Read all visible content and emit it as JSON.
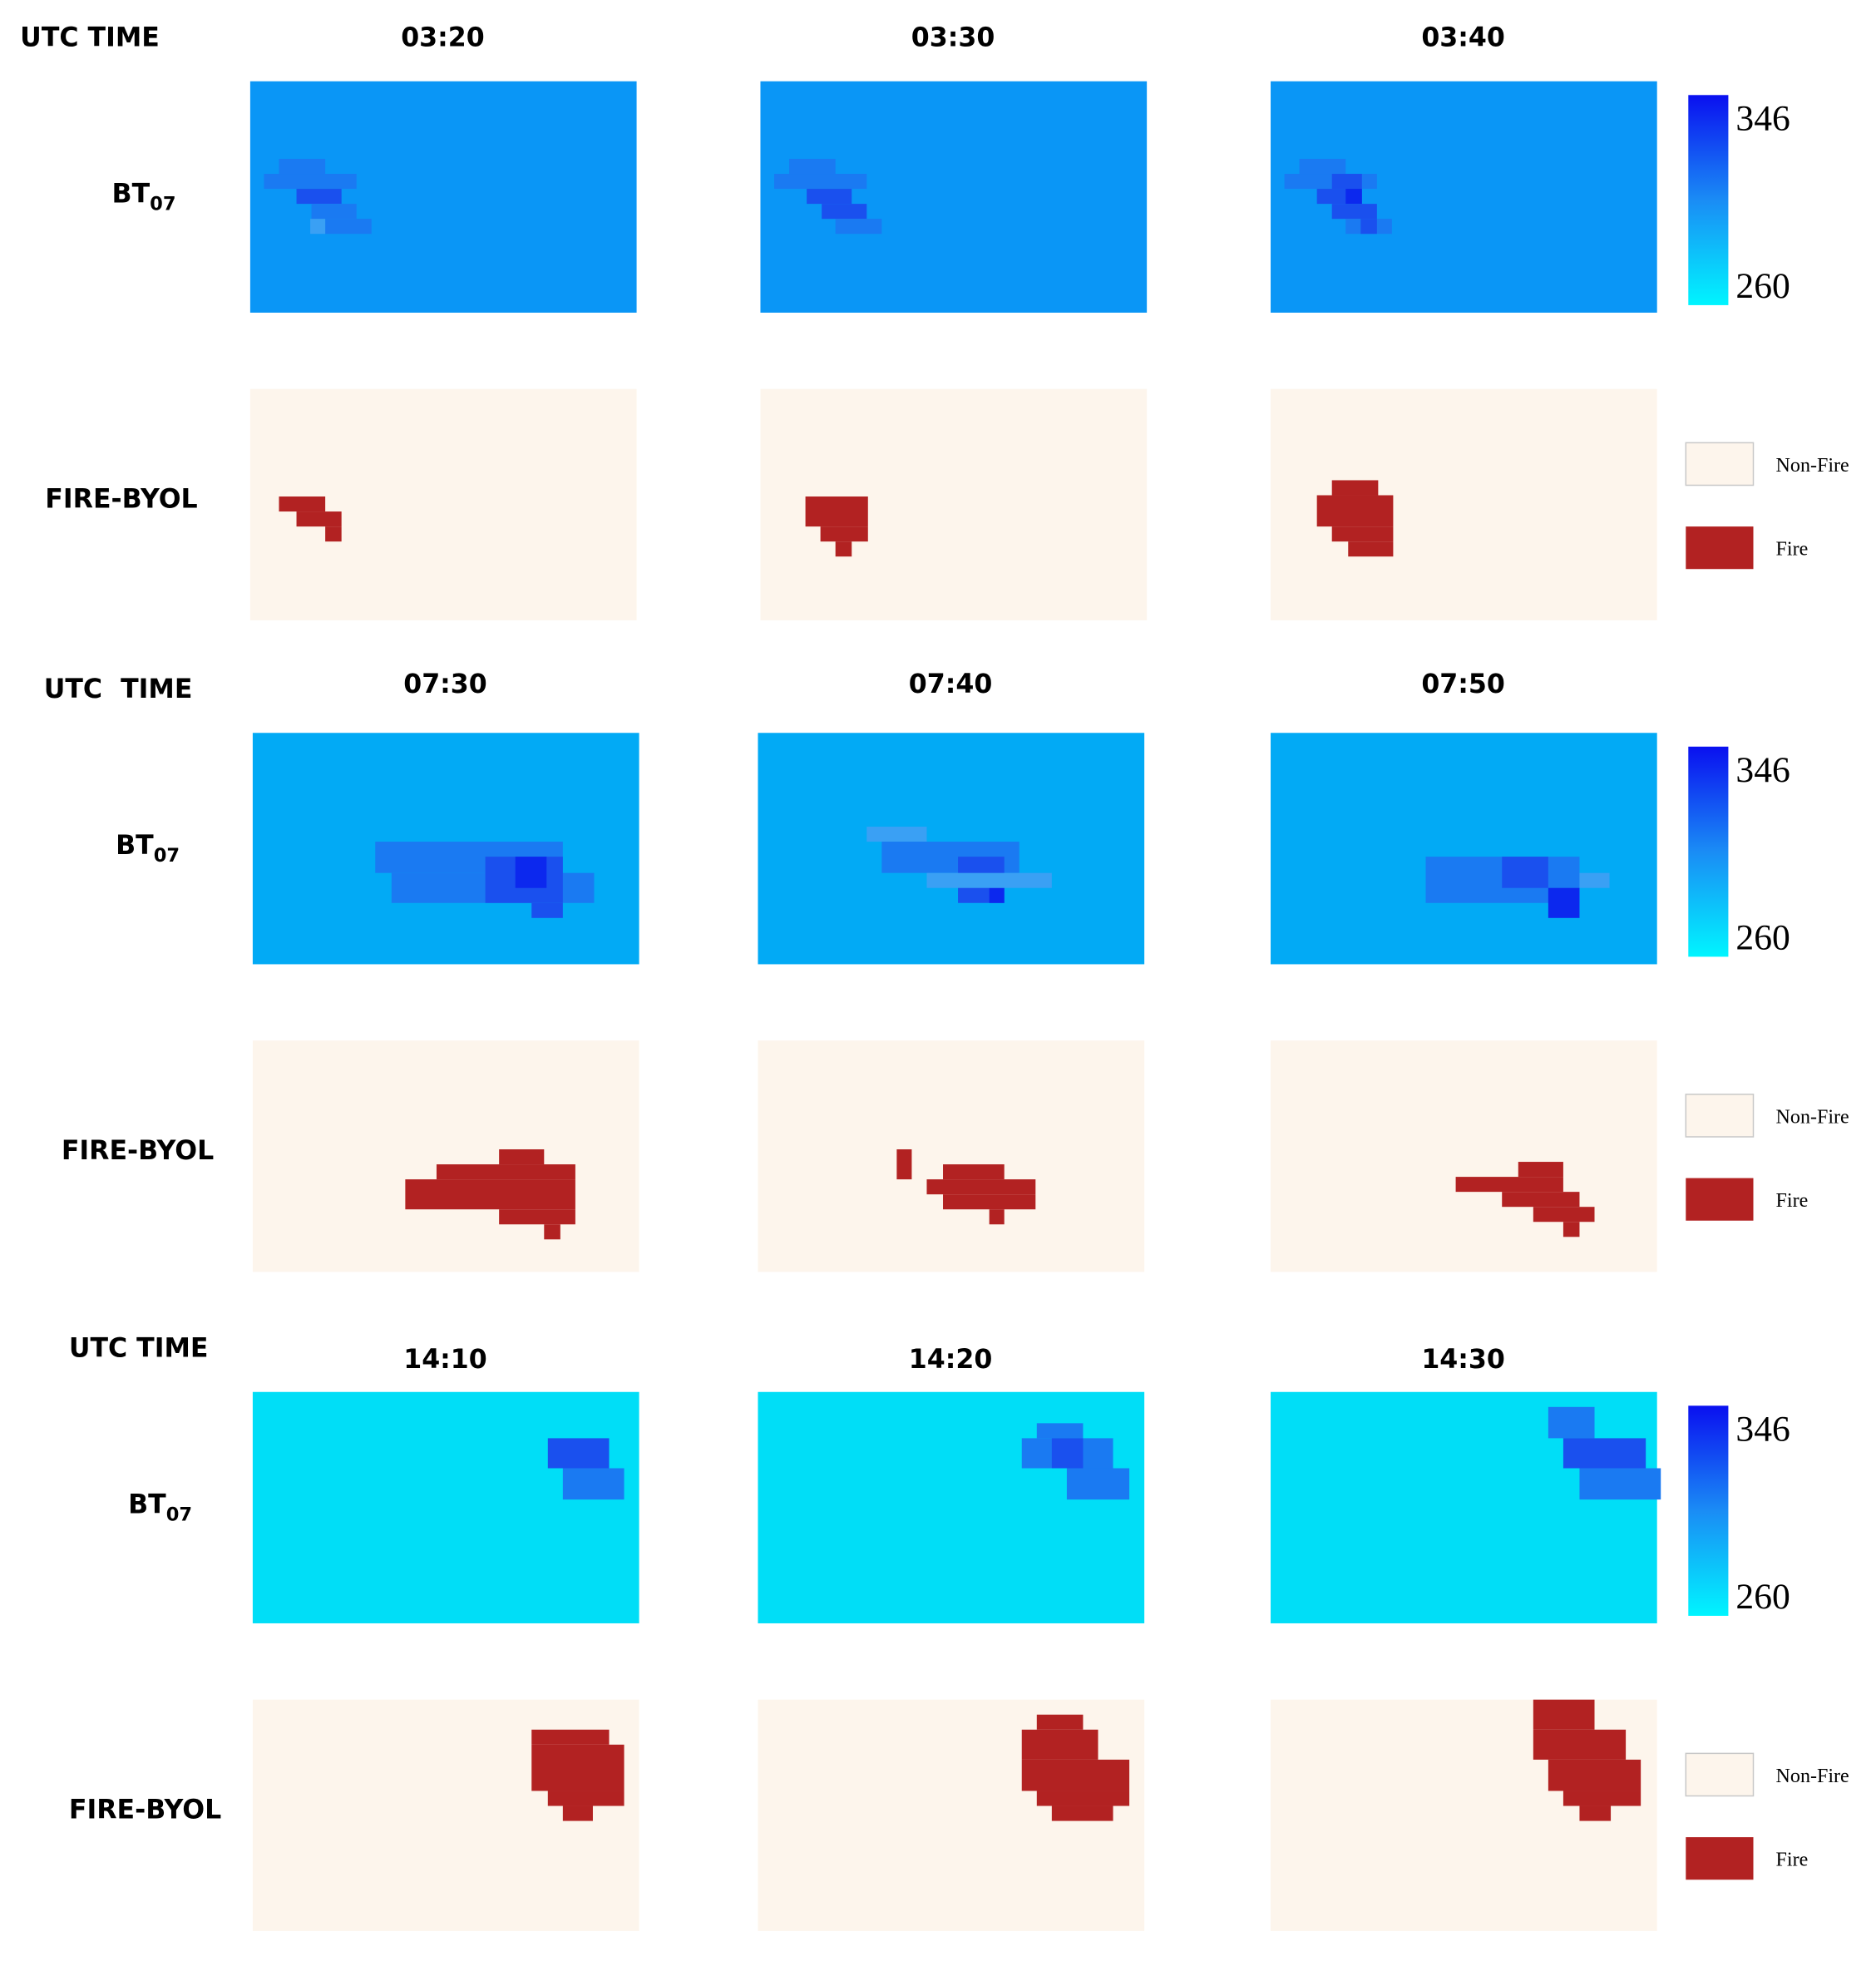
{
  "groups": [
    {
      "header": "UTC TIME",
      "times": [
        "03:20",
        "03:30",
        "03:40"
      ],
      "rows": [
        {
          "label": "BT",
          "subscript": "07"
        },
        {
          "label": "FIRE-BYOL"
        }
      ],
      "colorbar": {
        "max": 346,
        "min": 260
      },
      "legend": [
        "Non-Fire",
        "Fire"
      ]
    },
    {
      "header": "UTC  TIME",
      "times": [
        "07:30",
        "07:40",
        "07:50"
      ],
      "rows": [
        {
          "label": "BT",
          "subscript": "07"
        },
        {
          "label": "FIRE-BYOL"
        }
      ],
      "colorbar": {
        "max": 346,
        "min": 260
      },
      "legend": [
        "Non-Fire",
        "Fire"
      ]
    },
    {
      "header": "UTC TIME",
      "times": [
        "14:10",
        "14:20",
        "14:30"
      ],
      "rows": [
        {
          "label": "BT",
          "subscript": "07"
        },
        {
          "label": "FIRE-BYOL"
        }
      ],
      "colorbar": {
        "max": 346,
        "min": 260
      },
      "legend": [
        "Non-Fire",
        "Fire"
      ]
    }
  ]
}
